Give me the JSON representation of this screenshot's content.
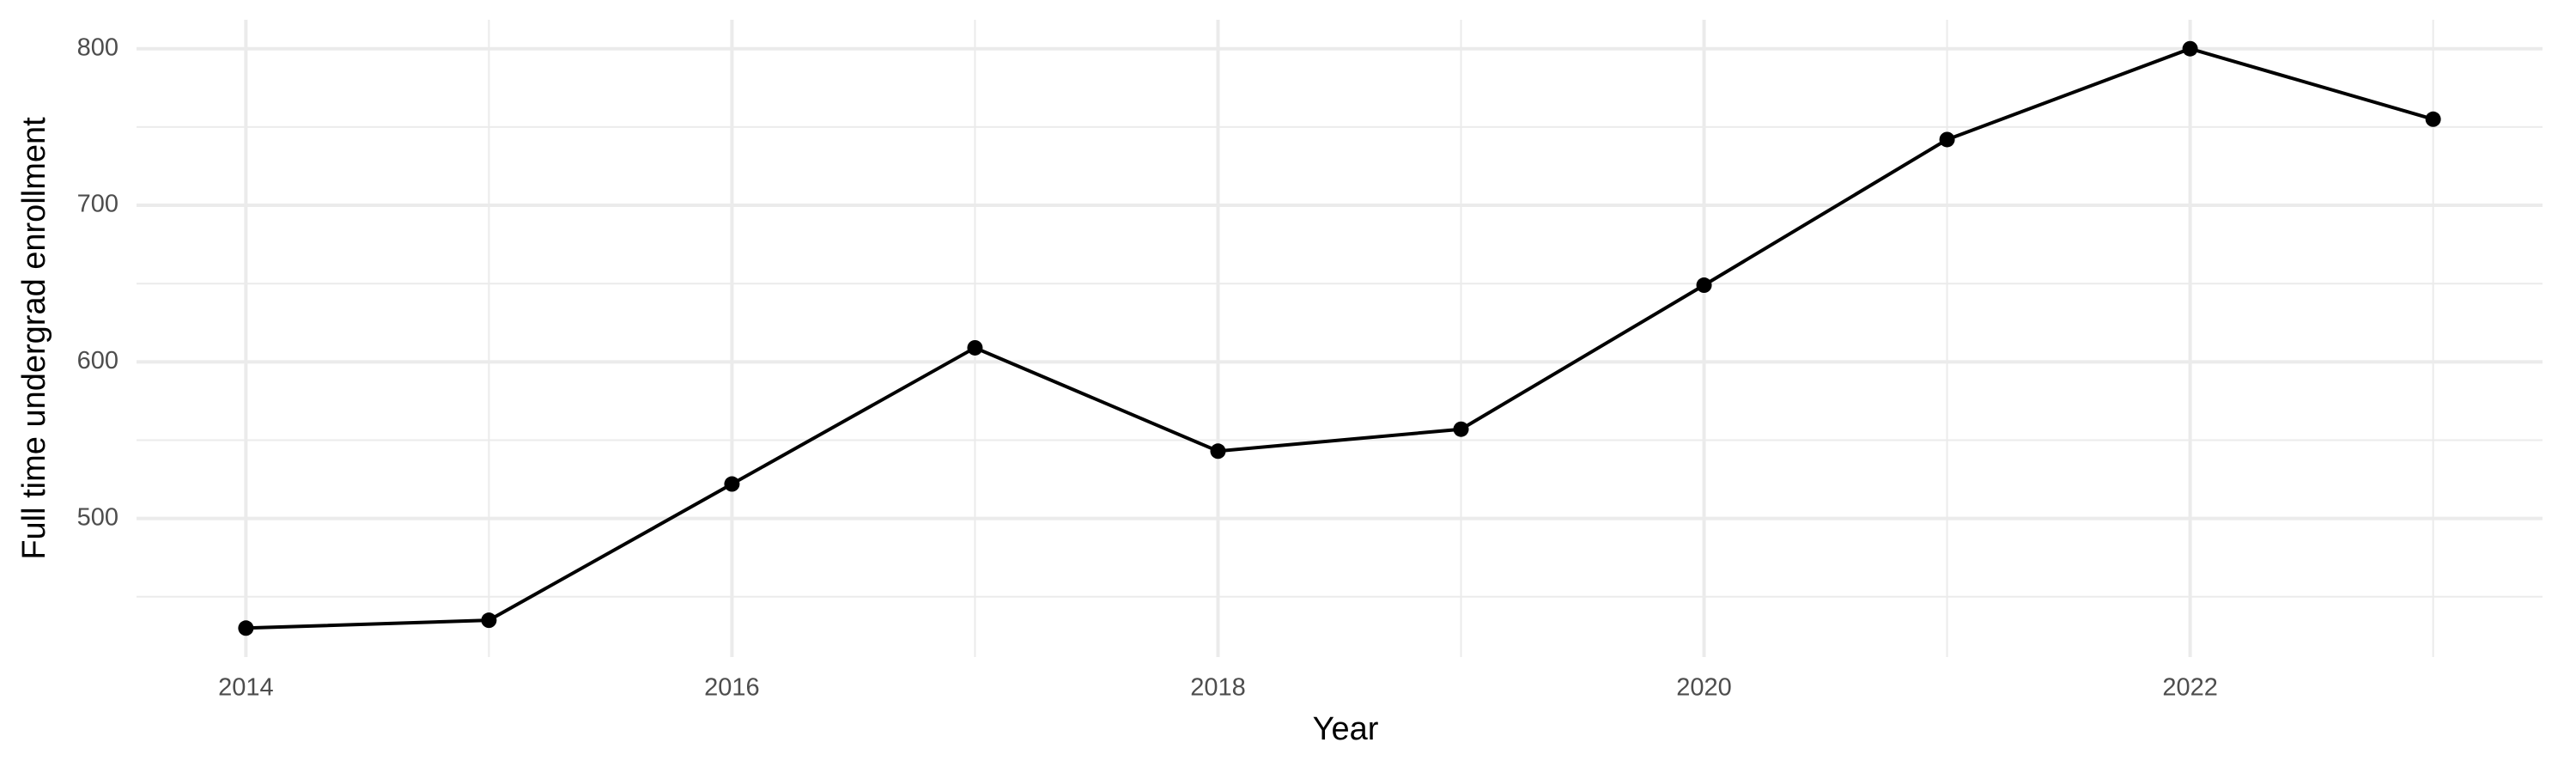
{
  "chart_data": {
    "type": "line",
    "x_label": "Year",
    "y_label": "Full time undergrad enrollment",
    "x": [
      2014,
      2015,
      2016,
      2017,
      2018,
      2019,
      2020,
      2021,
      2022,
      2023
    ],
    "series": [
      {
        "color": "#000000",
        "values": [
          430,
          435,
          522,
          609,
          543,
          557,
          649,
          742,
          800,
          755
        ]
      }
    ],
    "xlim": [
      2013.55,
      2023.45
    ],
    "xticks": [
      2014,
      2016,
      2018,
      2020,
      2022
    ],
    "ylim": [
      411.5,
      818.5
    ],
    "yticks": [
      500,
      600,
      700,
      800
    ],
    "grid": true,
    "minor_grid": true,
    "grid_color": "#ebebeb"
  }
}
